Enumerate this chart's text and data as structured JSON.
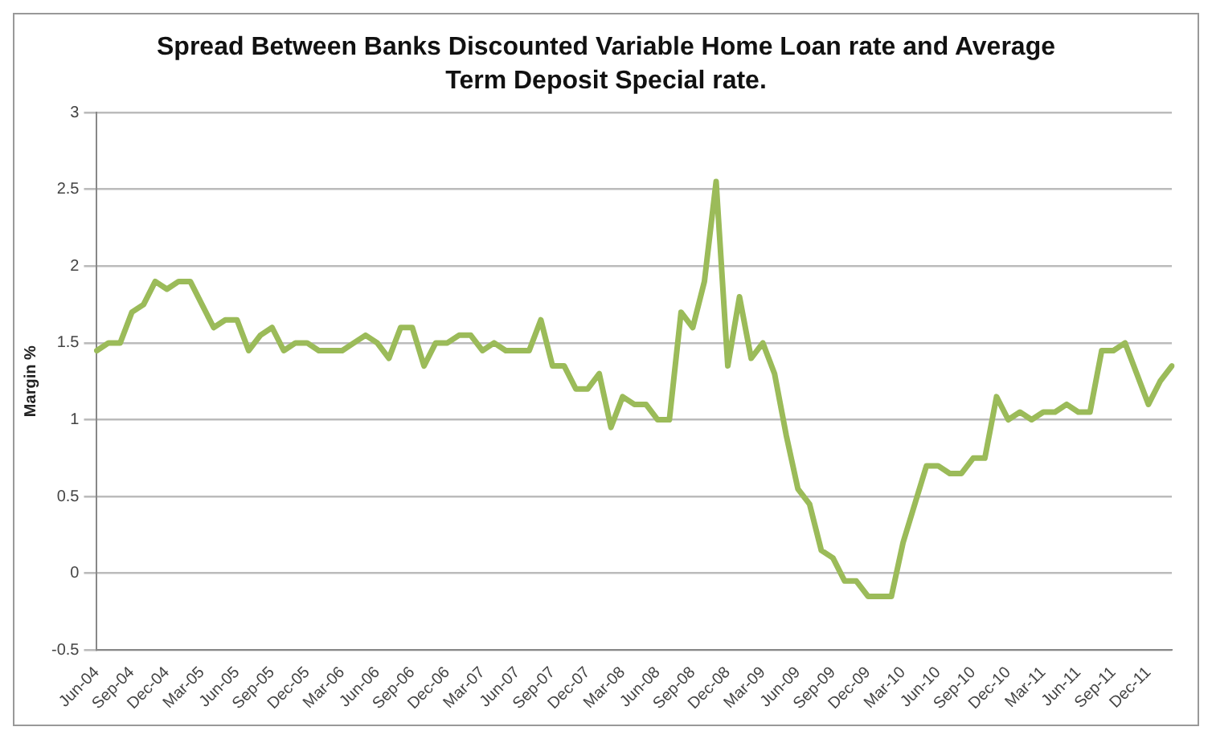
{
  "chart_data": {
    "type": "line",
    "title": "Spread Between Banks Discounted Variable Home Loan rate and Average Term Deposit Special rate.",
    "ylabel": "Margin %",
    "categories": [
      "Jun-04",
      null,
      null,
      "Sep-04",
      null,
      null,
      "Dec-04",
      null,
      null,
      "Mar-05",
      null,
      null,
      "Jun-05",
      null,
      null,
      "Sep-05",
      null,
      null,
      "Dec-05",
      null,
      null,
      "Mar-06",
      null,
      null,
      "Jun-06",
      null,
      null,
      "Sep-06",
      null,
      null,
      "Dec-06",
      null,
      null,
      "Mar-07",
      null,
      null,
      "Jun-07",
      null,
      null,
      "Sep-07",
      null,
      null,
      "Dec-07",
      null,
      null,
      "Mar-08",
      null,
      null,
      "Jun-08",
      null,
      null,
      "Sep-08",
      null,
      null,
      "Dec-08",
      null,
      null,
      "Mar-09",
      null,
      null,
      "Jun-09",
      null,
      null,
      "Sep-09",
      null,
      null,
      "Dec-09",
      null,
      null,
      "Mar-10",
      null,
      null,
      "Jun-10",
      null,
      null,
      "Sep-10",
      null,
      null,
      "Dec-10",
      null,
      null,
      "Mar-11",
      null,
      null,
      "Jun-11",
      null,
      null,
      "Sep-11",
      null,
      null,
      "Dec-11",
      null,
      null
    ],
    "series": [
      {
        "color": "#9bbb59",
        "values": [
          1.45,
          1.5,
          1.5,
          1.7,
          1.75,
          1.9,
          1.85,
          1.9,
          1.9,
          1.75,
          1.6,
          1.65,
          1.65,
          1.45,
          1.55,
          1.6,
          1.45,
          1.5,
          1.5,
          1.45,
          1.45,
          1.45,
          1.5,
          1.55,
          1.5,
          1.4,
          1.6,
          1.6,
          1.35,
          1.5,
          1.5,
          1.55,
          1.55,
          1.45,
          1.5,
          1.45,
          1.45,
          1.45,
          1.65,
          1.35,
          1.35,
          1.2,
          1.2,
          1.3,
          0.95,
          1.15,
          1.1,
          1.1,
          1.0,
          1.0,
          1.7,
          1.6,
          1.9,
          2.55,
          1.35,
          1.8,
          1.4,
          1.5,
          1.3,
          0.9,
          0.55,
          0.45,
          0.15,
          0.1,
          -0.05,
          -0.05,
          -0.15,
          -0.15,
          -0.15,
          0.2,
          0.45,
          0.7,
          0.7,
          0.65,
          0.65,
          0.75,
          0.75,
          1.15,
          1.0,
          1.05,
          1.0,
          1.05,
          1.05,
          1.1,
          1.05,
          1.05,
          1.45,
          1.45,
          1.5,
          1.3,
          1.1,
          1.25,
          1.35
        ]
      }
    ],
    "ylim": [
      -0.5,
      3
    ],
    "yticks": [
      -0.5,
      0,
      0.5,
      1,
      1.5,
      2,
      2.5,
      3
    ],
    "grid": "y",
    "legend": false,
    "marker": "none",
    "line_style": "solid"
  }
}
